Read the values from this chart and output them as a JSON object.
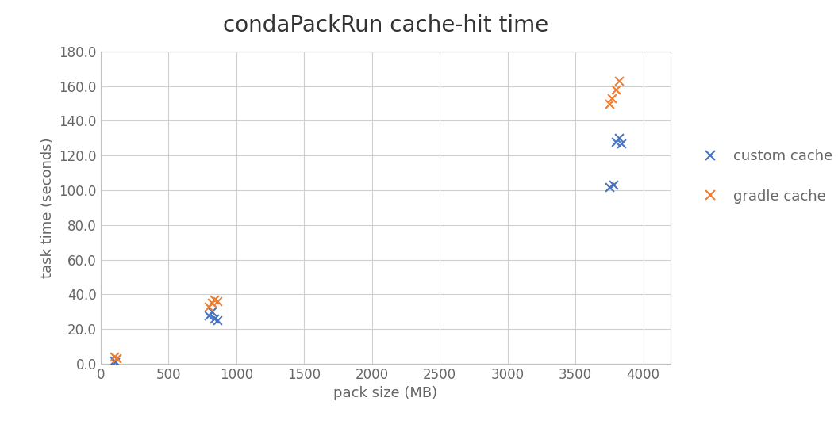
{
  "title": "condaPackRun cache-hit time",
  "xlabel": "pack size (MB)",
  "ylabel": "task time (seconds)",
  "xlim": [
    0,
    4200
  ],
  "ylim": [
    0,
    180
  ],
  "xticks": [
    0,
    500,
    1000,
    1500,
    2000,
    2500,
    3000,
    3500,
    4000
  ],
  "yticks": [
    0.0,
    20.0,
    40.0,
    60.0,
    80.0,
    100.0,
    120.0,
    140.0,
    160.0,
    180.0
  ],
  "custom_cache": {
    "x": [
      100,
      105,
      800,
      820,
      840,
      860,
      3750,
      3780,
      3800,
      3820,
      3840
    ],
    "y": [
      2,
      1,
      28,
      30,
      26,
      25,
      102,
      103,
      128,
      130,
      127
    ],
    "color": "#4472C4",
    "label": "custom cache"
  },
  "gradle_cache": {
    "x": [
      100,
      120,
      800,
      820,
      840,
      860,
      3750,
      3770,
      3800,
      3820
    ],
    "y": [
      4,
      3,
      33,
      35,
      37,
      36,
      150,
      153,
      158,
      163
    ],
    "color": "#ED7D31",
    "label": "gradle cache"
  },
  "marker": "x",
  "marker_size": 60,
  "marker_linewidth": 1.5,
  "grid_color": "#D0D0D0",
  "background_color": "#FFFFFF",
  "plot_bg_color": "#FFFFFF",
  "title_fontsize": 20,
  "label_fontsize": 13,
  "tick_fontsize": 12,
  "tick_color": "#666666",
  "legend_fontsize": 13,
  "spine_color": "#C0C0C0"
}
